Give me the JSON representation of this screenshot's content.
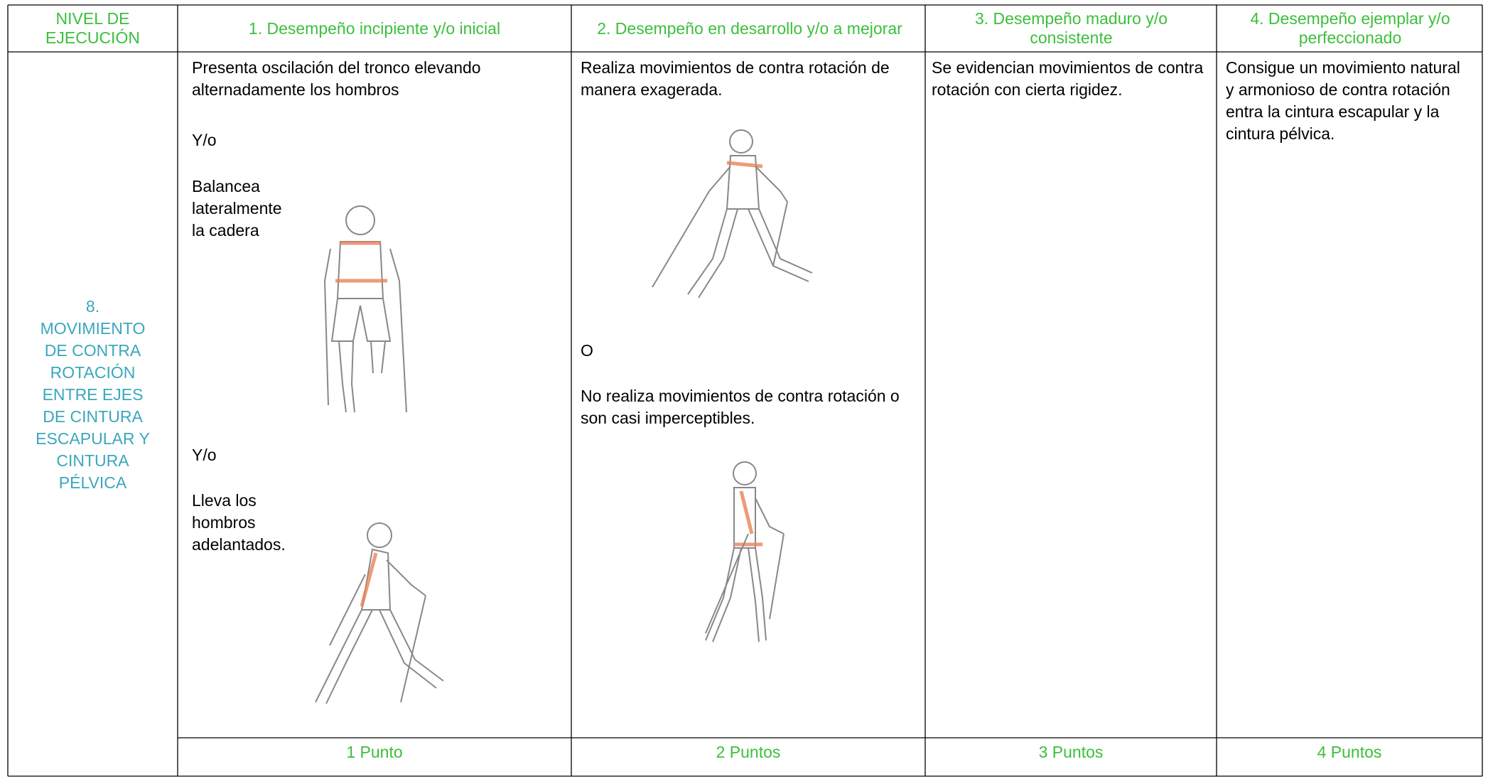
{
  "table": {
    "header": [
      "NIVEL DE EJECUCIÓN",
      "1. Desempeño incipiente y/o inicial",
      "2. Desempeño en desarrollo y/o a mejorar",
      "3. Desempeño maduro y/o consistente",
      "4. Desempeño ejemplar y/o perfeccionado"
    ],
    "row_label": [
      "8.",
      "MOVIMIENTO",
      "DE CONTRA",
      "ROTACIÓN",
      "ENTRE EJES",
      "DE CINTURA",
      "ESCAPULAR Y",
      "CINTURA",
      "PÉLVICA"
    ],
    "cells": [
      [
        "Presenta oscilación del tronco elevando alternadamente los hombros",
        "Y/o",
        "Balancea lateralmente la cadera",
        "Y/o",
        "Lleva los hombros adelantados."
      ],
      [
        "Realiza movimientos de contra rotación de manera exagerada.",
        "O",
        "No realiza movimientos de contra rotación o son casi imperceptibles."
      ],
      [
        "Se evidencian movimientos de contra rotación con cierta rigidez."
      ],
      [
        "Consigue un movimiento natural y armonioso de contra rotación entra la cintura escapular y la cintura pélvica."
      ]
    ],
    "points": [
      "1 Punto",
      "2 Puntos",
      "3 Puntos",
      "4 Puntos"
    ]
  }
}
